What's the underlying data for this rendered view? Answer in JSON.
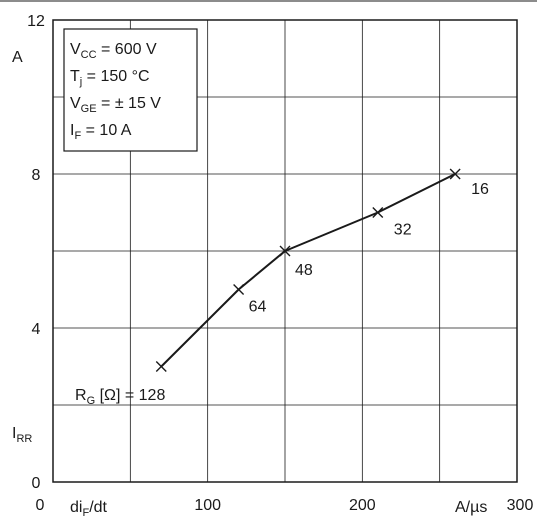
{
  "chart_data": {
    "type": "line",
    "x_quantity": "di",
    "x_quantity_sub": "F",
    "x_quantity_suffix": "/dt",
    "x_unit": "A/µs",
    "y_quantity": "I",
    "y_quantity_sub": "RR",
    "y_unit": "A",
    "xlim": [
      0,
      300
    ],
    "ylim": [
      0,
      12
    ],
    "x_ticks": [
      "0",
      "100",
      "200",
      "300"
    ],
    "y_ticks": [
      "0",
      "4",
      "8",
      "12"
    ],
    "grid": true,
    "series": [
      {
        "points": [
          {
            "x": 70,
            "y": 3.0,
            "label": "128"
          },
          {
            "x": 120,
            "y": 5.0,
            "label": "64"
          },
          {
            "x": 150,
            "y": 6.0,
            "label": "48"
          },
          {
            "x": 210,
            "y": 7.0,
            "label": "32"
          },
          {
            "x": 260,
            "y": 8.0,
            "label": "16"
          }
        ]
      }
    ],
    "parameter_label": {
      "main": "R",
      "sub": "G",
      "rest": " [Ω] ="
    },
    "conditions": [
      {
        "main": "V",
        "sub": "CC",
        "rest": " = 600 V"
      },
      {
        "main": "T",
        "sub": "j",
        "rest": "   = 150 °C"
      },
      {
        "main": "V",
        "sub": "GE",
        "rest": " = ± 15 V"
      },
      {
        "main": "I",
        "sub": "F",
        "rest": "   = 10 A"
      }
    ]
  }
}
